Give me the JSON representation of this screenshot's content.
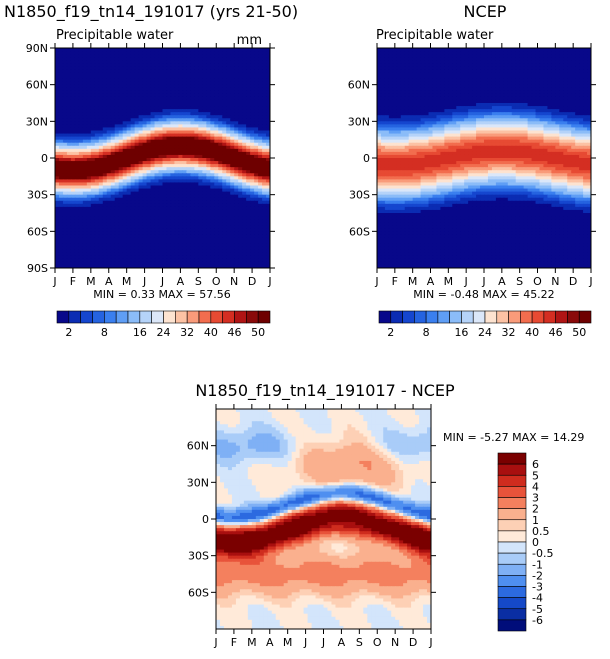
{
  "chart_data": [
    {
      "type": "heatmap",
      "title": "N1850_f19_tn14_191017 (yrs 21-50)",
      "subtitle": "Precipitable water",
      "units": "mm",
      "x_ticks": [
        "J",
        "F",
        "M",
        "A",
        "M",
        "J",
        "J",
        "A",
        "S",
        "O",
        "N",
        "D",
        "J"
      ],
      "y_ticks": [
        "90N",
        "60N",
        "30N",
        "0",
        "30S",
        "60S",
        "90S"
      ],
      "y_range": [
        -90,
        90
      ],
      "stats": "MIN =    0.33 MAX =   57.56",
      "colorbar_labels": [
        "2",
        "8",
        "16",
        "24",
        "32",
        "40",
        "46",
        "50"
      ],
      "levels": [
        2,
        4,
        6,
        8,
        10,
        12,
        16,
        20,
        24,
        28,
        32,
        36,
        40,
        43,
        46,
        48,
        50
      ],
      "colors": [
        "#08088a",
        "#0b2cb3",
        "#1546cf",
        "#2563e0",
        "#3a7fef",
        "#5f9ef5",
        "#8bbcf8",
        "#b5d3f9",
        "#dbe7f9",
        "#fde3d0",
        "#fcc2a4",
        "#f99b7a",
        "#f26d4e",
        "#e74a33",
        "#d42e22",
        "#b01414",
        "#8a0a0a",
        "#6e0000"
      ]
    },
    {
      "type": "heatmap",
      "title": "NCEP",
      "subtitle": "Precipitable water",
      "x_ticks": [
        "J",
        "F",
        "M",
        "A",
        "M",
        "J",
        "J",
        "A",
        "S",
        "O",
        "N",
        "D",
        "J"
      ],
      "y_ticks": [
        "60N",
        "30N",
        "0",
        "30S",
        "60S"
      ],
      "y_range": [
        -90,
        90
      ],
      "stats": "MIN =   -0.48 MAX =   45.22",
      "colorbar_labels": [
        "2",
        "8",
        "16",
        "24",
        "32",
        "40",
        "46",
        "50"
      ]
    },
    {
      "type": "heatmap",
      "title": "N1850_f19_tn14_191017 - NCEP",
      "x_ticks": [
        "J",
        "F",
        "M",
        "A",
        "M",
        "J",
        "J",
        "A",
        "S",
        "O",
        "N",
        "D",
        "J"
      ],
      "y_ticks": [
        "60N",
        "30N",
        "0",
        "30S",
        "60S"
      ],
      "y_range": [
        -90,
        90
      ],
      "stats": "MIN =   -5.27 MAX =   14.29",
      "colorbar_labels": [
        "6",
        "5",
        "4",
        "3",
        "2",
        "1",
        "0.5",
        "0",
        "-0.5",
        "-1",
        "-2",
        "-3",
        "-4",
        "-5",
        "-6"
      ],
      "levels": [
        -6,
        -5,
        -4,
        -3,
        -2,
        -1,
        -0.5,
        0,
        0.5,
        1,
        2,
        3,
        4,
        5,
        6
      ],
      "colors": [
        "#000d7a",
        "#0a2ea3",
        "#1549c8",
        "#2c6ae0",
        "#4f8ff0",
        "#7fb0f5",
        "#a9ccf8",
        "#d3e5fb",
        "#ffead9",
        "#fdd0b5",
        "#fab08e",
        "#f4805e",
        "#e8533a",
        "#cf2c1e",
        "#a80f0f",
        "#7a0000"
      ]
    }
  ]
}
